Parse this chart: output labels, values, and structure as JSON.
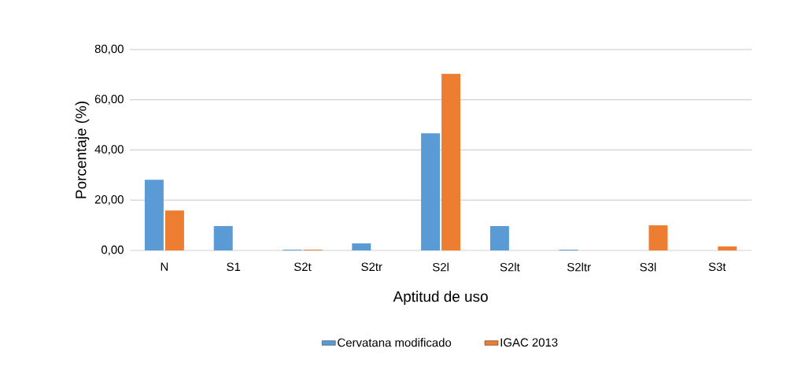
{
  "chart_data": {
    "type": "bar",
    "xlabel": "Aptitud de uso",
    "ylabel": "Porcentaje (%)",
    "categories": [
      "N",
      "S1",
      "S2t",
      "S2tr",
      "S2l",
      "S2lt",
      "S2ltr",
      "S3l",
      "S3t"
    ],
    "series": [
      {
        "name": "Cervatana modificado",
        "color": "#5b9bd5",
        "values": [
          28.1,
          9.7,
          0.3,
          2.8,
          46.6,
          9.7,
          0.3,
          0,
          0
        ]
      },
      {
        "name": "IGAC 2013",
        "color": "#ed7d31",
        "values": [
          15.9,
          0,
          0.3,
          0,
          70.3,
          0,
          0,
          10,
          1.6
        ]
      }
    ],
    "ylim": [
      0,
      80
    ],
    "yticks": [
      {
        "value": 0,
        "label": "0,00"
      },
      {
        "value": 20,
        "label": "20,00"
      },
      {
        "value": 40,
        "label": "40,00"
      },
      {
        "value": 60,
        "label": "60,00"
      },
      {
        "value": 80,
        "label": "80,00"
      }
    ],
    "grid": "y",
    "legend": "bottom"
  }
}
